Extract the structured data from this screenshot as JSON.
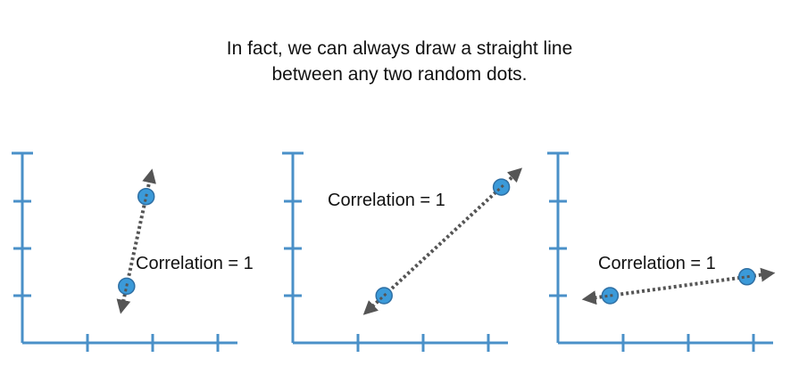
{
  "subtitle": {
    "line1": "In fact, we can always draw a straight line",
    "line2": "between any two random dots."
  },
  "colors": {
    "axis": "#4a90c8",
    "dot_fill": "#3b9ad9",
    "dot_stroke": "#2f6fa3",
    "line": "#555555",
    "text": "#111111"
  },
  "panels": [
    {
      "label": "Correlation = 1",
      "points": [
        {
          "x": 1.6,
          "y": 1.2
        },
        {
          "x": 1.9,
          "y": 3.1
        }
      ]
    },
    {
      "label": "Correlation = 1",
      "points": [
        {
          "x": 1.4,
          "y": 1.0
        },
        {
          "x": 3.2,
          "y": 3.3
        }
      ]
    },
    {
      "label": "Correlation = 1",
      "points": [
        {
          "x": 0.8,
          "y": 1.0
        },
        {
          "x": 2.9,
          "y": 1.4
        }
      ]
    }
  ]
}
